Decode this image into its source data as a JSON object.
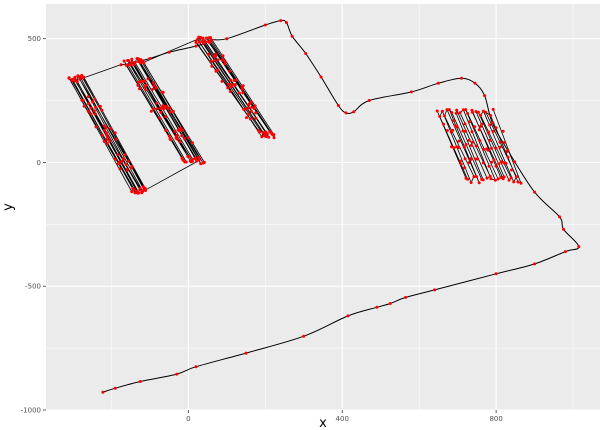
{
  "chart_data": {
    "type": "line",
    "title": "",
    "xlabel": "x",
    "ylabel": "y",
    "xlim": [
      -370,
      1070
    ],
    "ylim": [
      -1000,
      640
    ],
    "x_ticks": [
      0,
      400,
      800
    ],
    "y_ticks": [
      500,
      0,
      -500,
      -1000
    ],
    "x_tick_labels": [
      "0",
      "400",
      "800"
    ],
    "y_tick_labels": [
      "500",
      "0",
      "-500",
      "-1000"
    ],
    "grid": true,
    "legend": "none",
    "colors": {
      "panel": "#ebebeb",
      "grid": "#ffffff",
      "line": "#000000",
      "points": "#ff0000"
    },
    "path": [
      {
        "x": -222,
        "y": -928
      },
      {
        "x": -190,
        "y": -912
      },
      {
        "x": -125,
        "y": -885
      },
      {
        "x": -30,
        "y": -855
      },
      {
        "x": 20,
        "y": -825
      },
      {
        "x": 150,
        "y": -770
      },
      {
        "x": 300,
        "y": -702
      },
      {
        "x": 415,
        "y": -620
      },
      {
        "x": 490,
        "y": -585
      },
      {
        "x": 525,
        "y": -570
      },
      {
        "x": 565,
        "y": -545
      },
      {
        "x": 640,
        "y": -515
      },
      {
        "x": 800,
        "y": -450
      },
      {
        "x": 900,
        "y": -410
      },
      {
        "x": 980,
        "y": -360
      },
      {
        "x": 1015,
        "y": -340
      },
      {
        "x": 975,
        "y": -270
      },
      {
        "x": 965,
        "y": -220
      },
      {
        "x": 900,
        "y": -120
      },
      {
        "x": 830,
        "y": 50
      },
      {
        "x": 790,
        "y": 160
      },
      {
        "x": 770,
        "y": 270
      },
      {
        "x": 745,
        "y": 320
      },
      {
        "x": 710,
        "y": 340
      },
      {
        "x": 650,
        "y": 320
      },
      {
        "x": 580,
        "y": 285
      },
      {
        "x": 470,
        "y": 250
      },
      {
        "x": 430,
        "y": 205
      },
      {
        "x": 410,
        "y": 200
      },
      {
        "x": 390,
        "y": 230
      },
      {
        "x": 345,
        "y": 345
      },
      {
        "x": 305,
        "y": 440
      },
      {
        "x": 270,
        "y": 510
      },
      {
        "x": 255,
        "y": 565
      },
      {
        "x": 240,
        "y": 573
      },
      {
        "x": 200,
        "y": 555
      },
      {
        "x": 100,
        "y": 500
      },
      {
        "x": 60,
        "y": 495
      },
      {
        "x": 40,
        "y": 480
      },
      {
        "x": 20,
        "y": 470
      },
      {
        "x": -50,
        "y": 445
      },
      {
        "x": -100,
        "y": 420
      },
      {
        "x": -150,
        "y": 400
      },
      {
        "x": -175,
        "y": 395
      }
    ],
    "blocks": [
      {
        "x_top_left": -310,
        "x_top_right": -275,
        "y_top": 340,
        "x_bot_left": -145,
        "x_bot_right": -110,
        "y_bot": -110,
        "passes": 16
      },
      {
        "x_top_left": -165,
        "x_top_right": -115,
        "y_top": 405,
        "x_bot_left": -15,
        "x_bot_right": 40,
        "y_bot": 10,
        "passes": 18
      },
      {
        "x_top_left": 20,
        "x_top_right": 60,
        "y_top": 495,
        "x_bot_left": 185,
        "x_bot_right": 225,
        "y_bot": 115,
        "passes": 16
      },
      {
        "x_top_left": 645,
        "x_top_right": 790,
        "y_top": 200,
        "x_bot_left": 720,
        "x_bot_right": 865,
        "y_bot": -70,
        "passes": 22
      }
    ],
    "block_links": [
      {
        "x1": -110,
        "y1": -110,
        "x2": 30,
        "y2": 10
      },
      {
        "x1": -275,
        "y1": 340,
        "x2": -175,
        "y2": 395
      },
      {
        "x1": -115,
        "y1": 405,
        "x2": 20,
        "y2": 495
      }
    ]
  }
}
